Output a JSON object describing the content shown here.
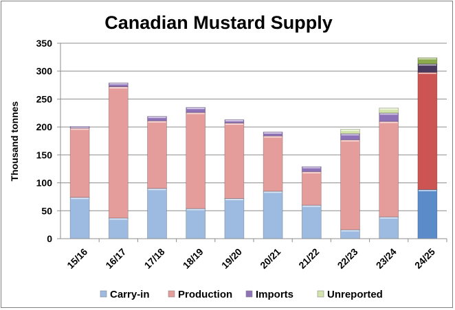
{
  "chart_data": {
    "type": "bar",
    "stacked": true,
    "title": "Canadian Mustard Supply",
    "xlabel": "",
    "ylabel": "Thousand tonnes",
    "ylim": [
      0,
      350
    ],
    "yticks": [
      0,
      50,
      100,
      150,
      200,
      250,
      300,
      350
    ],
    "grid": true,
    "legend_position": "bottom",
    "categories": [
      "15/16",
      "16/17",
      "17/18",
      "18/19",
      "19/20",
      "20/21",
      "21/22",
      "22/23",
      "23/24",
      "24/25"
    ],
    "series": [
      {
        "name": "Carry-in",
        "color": "#9dbbe1",
        "highlight_color": "#5b8cc9",
        "values": [
          74,
          37,
          90,
          54,
          72,
          85,
          60,
          16,
          39,
          88
        ]
      },
      {
        "name": "Production",
        "color": "#e59d9b",
        "highlight_color": "#cc5452",
        "values": [
          124,
          235,
          121,
          172,
          135,
          99,
          60,
          161,
          171,
          210
        ]
      },
      {
        "name": "Imports",
        "color": "#8e72b8",
        "highlight_color": "#4a3a5e",
        "values": [
          3,
          7,
          8,
          9,
          6,
          7,
          9,
          11,
          15,
          15
        ]
      },
      {
        "name": "Unreported",
        "color": "#d2e3ab",
        "highlight_color": "#8aaa4c",
        "values": [
          0,
          0,
          0,
          0,
          0,
          0,
          0,
          8,
          9,
          11
        ]
      }
    ],
    "highlighted_category": "24/25"
  }
}
